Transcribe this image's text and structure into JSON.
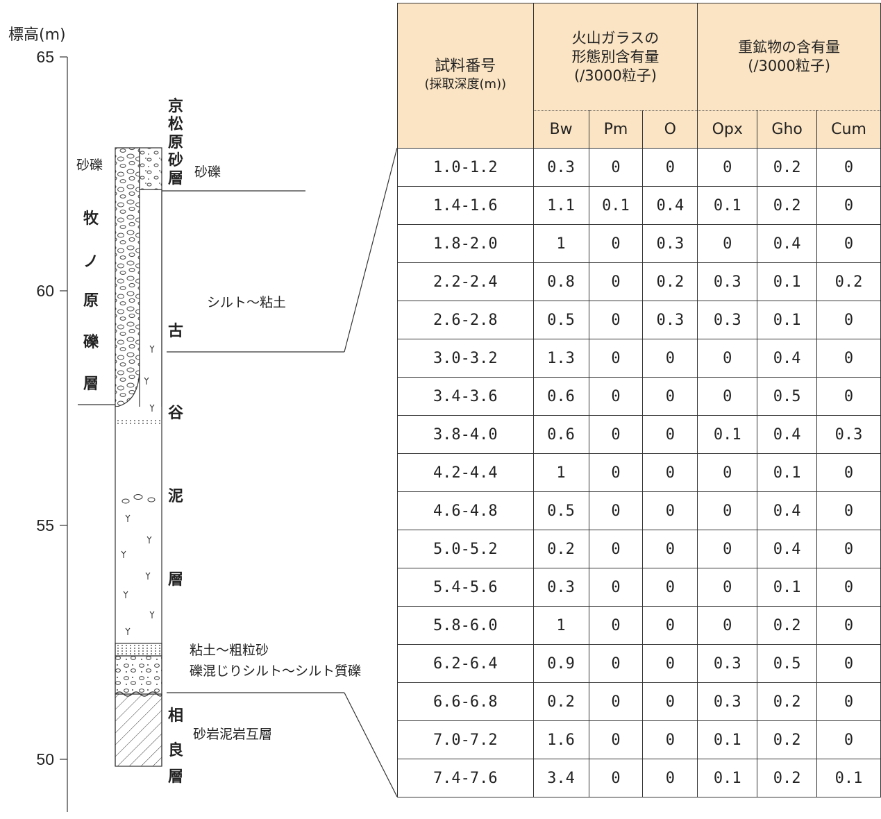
{
  "column": {
    "y_axis_label": "標高(m)",
    "y_ticks": [
      "65",
      "60",
      "55",
      "50"
    ],
    "formations": [
      {
        "chars": [
          "京",
          "松",
          "原",
          "砂",
          "層"
        ]
      },
      {
        "chars": [
          "牧",
          "ノ",
          "原",
          "礫",
          "層"
        ]
      },
      {
        "chars": [
          "古",
          "谷",
          "泥",
          "層"
        ]
      },
      {
        "chars": [
          "相",
          "良",
          "層"
        ]
      }
    ],
    "lithology_labels": {
      "left_gravel": "砂礫",
      "right_gravel": "砂礫",
      "silt_clay": "シルト〜粘土",
      "clay_coarse_sand": "粘土〜粗粒砂",
      "gravelly_silt": "礫混じりシルト〜シルト質礫",
      "sandstone_mudstone": "砂岩泥岩互層"
    }
  },
  "table": {
    "header": {
      "sample_line1": "試料番号",
      "sample_line2": "(採取深度(m))",
      "glass_group": [
        "火山ガラスの",
        "形態別含有量",
        "(/3000粒子)"
      ],
      "heavy_group": [
        "重鉱物の含有量",
        "(/3000粒子)"
      ],
      "columns": [
        "Bw",
        "Pm",
        "O",
        "Opx",
        "Gho",
        "Cum"
      ]
    },
    "rows": [
      [
        "1.0-1.2",
        "0.3",
        "0",
        "0",
        "0",
        "0.2",
        "0"
      ],
      [
        "1.4-1.6",
        "1.1",
        "0.1",
        "0.4",
        "0.1",
        "0.2",
        "0"
      ],
      [
        "1.8-2.0",
        "1",
        "0",
        "0.3",
        "0",
        "0.4",
        "0"
      ],
      [
        "2.2-2.4",
        "0.8",
        "0",
        "0.2",
        "0.3",
        "0.1",
        "0.2"
      ],
      [
        "2.6-2.8",
        "0.5",
        "0",
        "0.3",
        "0.3",
        "0.1",
        "0"
      ],
      [
        "3.0-3.2",
        "1.3",
        "0",
        "0",
        "0",
        "0.4",
        "0"
      ],
      [
        "3.4-3.6",
        "0.6",
        "0",
        "0",
        "0",
        "0.5",
        "0"
      ],
      [
        "3.8-4.0",
        "0.6",
        "0",
        "0",
        "0.1",
        "0.4",
        "0.3"
      ],
      [
        "4.2-4.4",
        "1",
        "0",
        "0",
        "0",
        "0.1",
        "0"
      ],
      [
        "4.6-4.8",
        "0.5",
        "0",
        "0",
        "0",
        "0.4",
        "0"
      ],
      [
        "5.0-5.2",
        "0.2",
        "0",
        "0",
        "0",
        "0.4",
        "0"
      ],
      [
        "5.4-5.6",
        "0.3",
        "0",
        "0",
        "0",
        "0.1",
        "0"
      ],
      [
        "5.8-6.0",
        "1",
        "0",
        "0",
        "0",
        "0.2",
        "0"
      ],
      [
        "6.2-6.4",
        "0.9",
        "0",
        "0",
        "0.3",
        "0.5",
        "0"
      ],
      [
        "6.6-6.8",
        "0.2",
        "0",
        "0",
        "0.3",
        "0.2",
        "0"
      ],
      [
        "7.0-7.2",
        "1.6",
        "0",
        "0",
        "0.1",
        "0.2",
        "0"
      ],
      [
        "7.4-7.6",
        "3.4",
        "0",
        "0",
        "0.1",
        "0.2",
        "0.1"
      ]
    ]
  }
}
